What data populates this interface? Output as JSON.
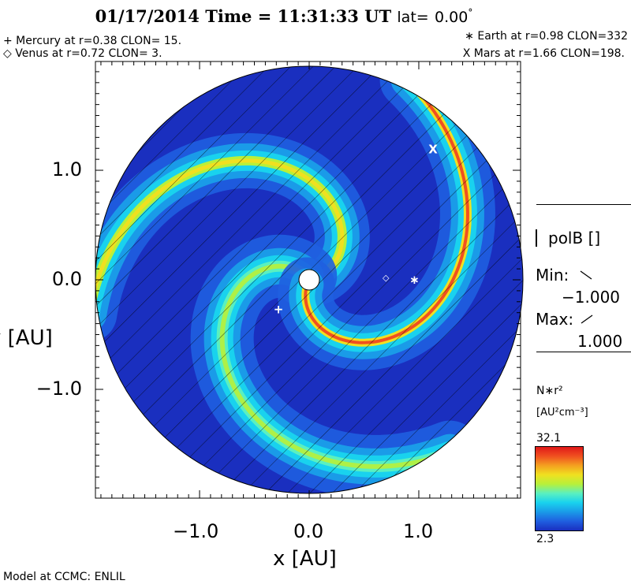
{
  "title": {
    "date": "01/17/2014",
    "time_label": "Time =",
    "time": "11:31:33",
    "tz": "UT",
    "lat_label": "lat=",
    "lat_value": "0.00",
    "degree": "°"
  },
  "planets": {
    "mercury": "+ Mercury at r=0.38 CLON= 15.",
    "venus": "◇ Venus at r=0.72 CLON=  3.",
    "earth": "∗ Earth at  r=0.98 CLON=332",
    "mars": "X Mars at r=1.66 CLON=198."
  },
  "chart_data": {
    "type": "heatmap",
    "description_free": true,
    "xlabel": "x [AU]",
    "ylabel": "y [AU]",
    "xlim": [
      -1.95,
      1.95
    ],
    "ylim": [
      -1.95,
      1.95
    ],
    "x_ticks": [
      {
        "value": -1.0,
        "label": "−1.0"
      },
      {
        "value": 0.0,
        "label": "0.0"
      },
      {
        "value": 1.0,
        "label": "1.0"
      }
    ],
    "y_ticks": [
      {
        "value": 1.0,
        "label": "1.0"
      },
      {
        "value": 0.0,
        "label": "0.0"
      },
      {
        "value": -1.0,
        "label": "−1.0"
      }
    ],
    "domain_radius_au": 1.95,
    "planet_markers": [
      {
        "symbol": "+",
        "x": -0.28,
        "y": -0.27,
        "color": "#ffffff"
      },
      {
        "symbol": "◇",
        "x": 0.7,
        "y": 0.03,
        "color": "#ffffff"
      },
      {
        "symbol": "∗",
        "x": 0.96,
        "y": 0.0,
        "color": "#ffffff"
      },
      {
        "symbol": "X",
        "x": 1.13,
        "y": 1.19,
        "color": "#ffffff"
      }
    ],
    "colorbar": {
      "quantity": "N∗r²",
      "units": "[AU²cm⁻³]",
      "max_label": "32.1",
      "min_label": "2.3",
      "vmin": 2.3,
      "vmax": 32.1,
      "colors": [
        "#1a2fbf",
        "#1f5fe0",
        "#1a9be8",
        "#19d2ee",
        "#5af0c0",
        "#b8f03a",
        "#f0e020",
        "#f4a020",
        "#f05020",
        "#e01818"
      ]
    },
    "polarity": {
      "label": "polB []",
      "min_label": "Min:",
      "min_value": "−1.000",
      "max_label": "Max:",
      "max_value": "1.000"
    }
  },
  "credit": "Model at CCMC: ENLIL"
}
